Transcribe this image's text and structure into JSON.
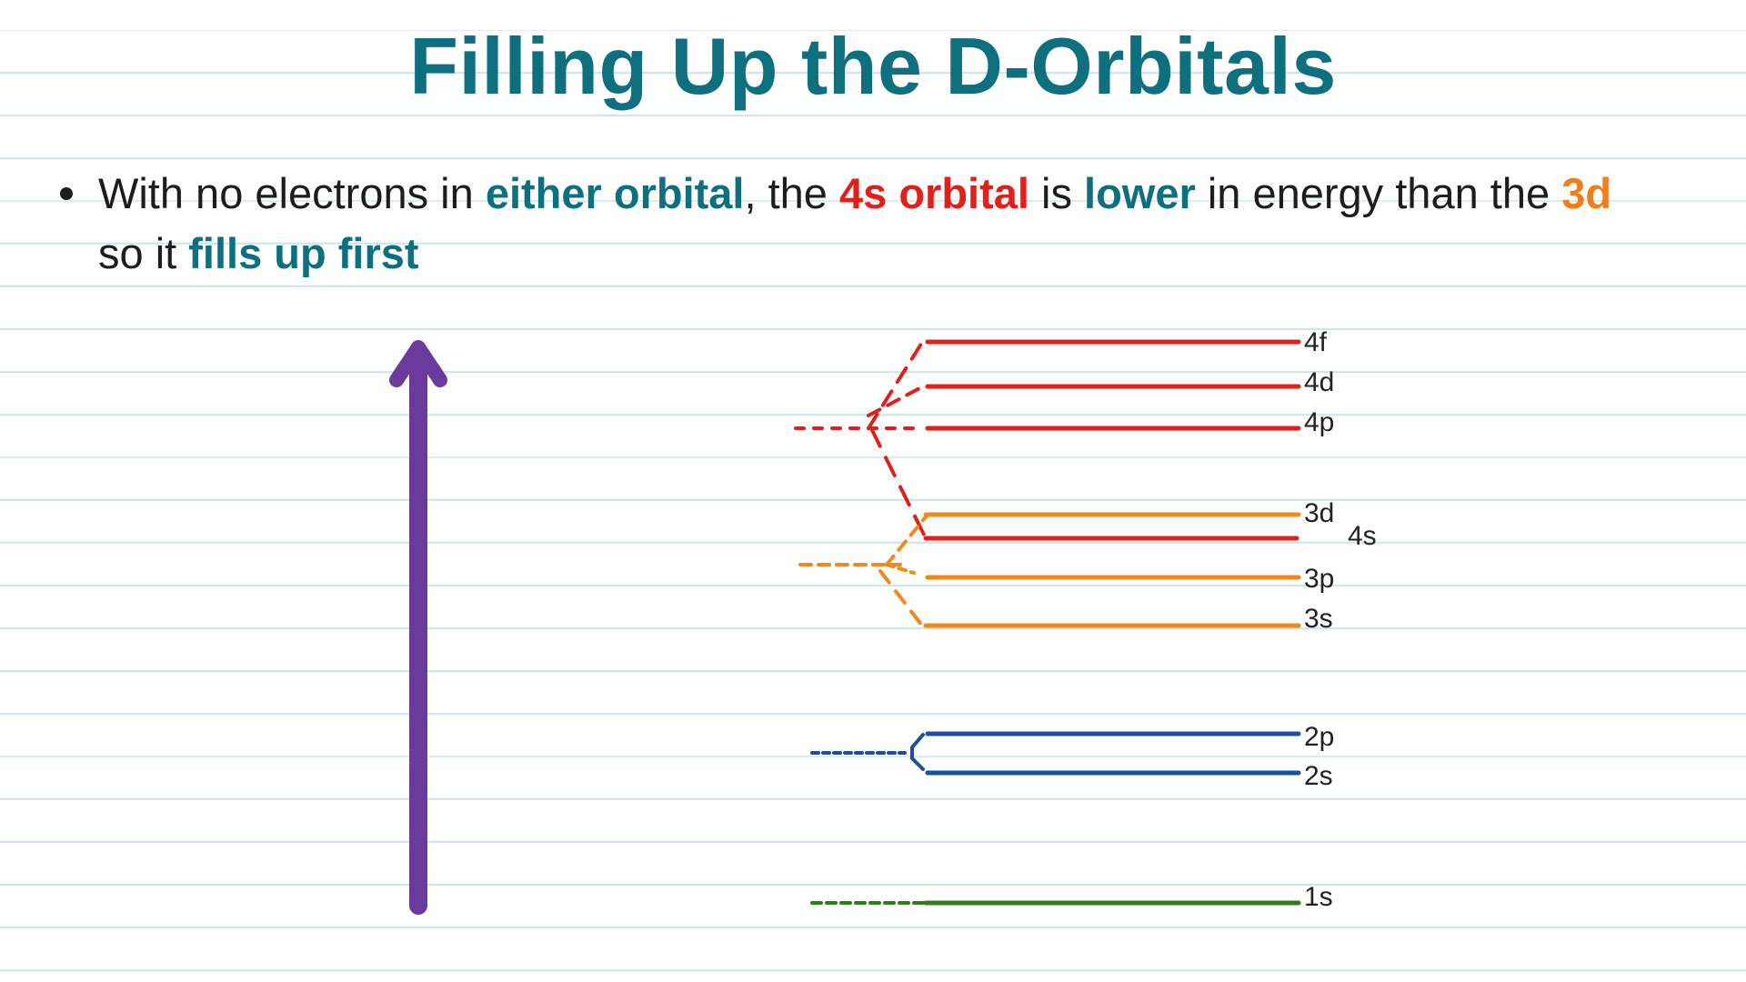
{
  "title": "Filling Up the D-Orbitals",
  "bullet": {
    "segments": [
      {
        "text": "With no electrons in ",
        "style": "plain"
      },
      {
        "text": "either orbital",
        "style": "teal"
      },
      {
        "text": ", the ",
        "style": "plain"
      },
      {
        "text": "4s orbital",
        "style": "red"
      },
      {
        "text": " is ",
        "style": "plain"
      },
      {
        "text": "lower",
        "style": "teal"
      },
      {
        "text": " in energy than the ",
        "style": "plain"
      },
      {
        "text": "3d",
        "style": "orange"
      },
      {
        "text": " so it ",
        "style": "plain"
      },
      {
        "text": "fills up first",
        "style": "teal"
      }
    ]
  },
  "diagram": {
    "levels": [
      {
        "label": "4f",
        "color": "#e0201b"
      },
      {
        "label": "4d",
        "color": "#e0201b"
      },
      {
        "label": "4p",
        "color": "#e0201b"
      },
      {
        "label": "3d",
        "color": "#ef8a1c"
      },
      {
        "label": "4s",
        "color": "#e0201b"
      },
      {
        "label": "3p",
        "color": "#ef8a1c"
      },
      {
        "label": "3s",
        "color": "#ef8a1c"
      },
      {
        "label": "2p",
        "color": "#1d4fa0"
      },
      {
        "label": "2s",
        "color": "#1d4fa0"
      },
      {
        "label": "1s",
        "color": "#2e7d1f"
      }
    ],
    "arrow_color": "#6a3a9c",
    "colors": {
      "shell_4": "#e0201b",
      "shell_3": "#ef8a1c",
      "shell_2": "#1d4fa0",
      "shell_1": "#2e7d1f"
    }
  }
}
